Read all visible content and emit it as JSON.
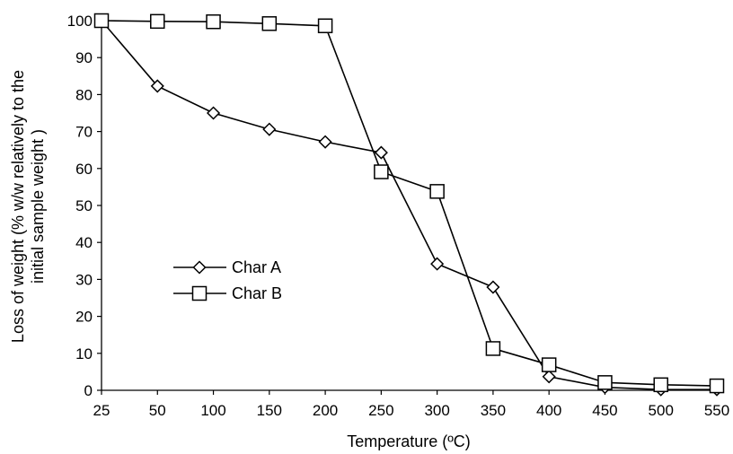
{
  "chart_data": {
    "type": "line",
    "title": "",
    "xlabel": "Temperature (ºC)",
    "ylabel_lines": [
      "Loss of weight (% w/w  relatively to the",
      "initial  sample weight )"
    ],
    "categories": [
      "25",
      "50",
      "100",
      "150",
      "200",
      "250",
      "300",
      "350",
      "400",
      "450",
      "500",
      "550"
    ],
    "ylim": [
      0,
      100
    ],
    "yticks": [
      "0",
      "10",
      "20",
      "30",
      "40",
      "50",
      "60",
      "70",
      "80",
      "90",
      "100"
    ],
    "grid": false,
    "legend_position": "center-left",
    "series": [
      {
        "name": "Char A",
        "marker": "diamond",
        "color": "#000000",
        "values": [
          100,
          82.3,
          75,
          70.6,
          67.2,
          64.3,
          34.2,
          27.9,
          3.7,
          0.8,
          0.2,
          0.2
        ]
      },
      {
        "name": "Char B",
        "marker": "square",
        "color": "#000000",
        "values": [
          100,
          99.8,
          99.7,
          99.2,
          98.6,
          59.1,
          53.8,
          11.3,
          6.9,
          2.1,
          1.5,
          1.2
        ]
      }
    ]
  }
}
